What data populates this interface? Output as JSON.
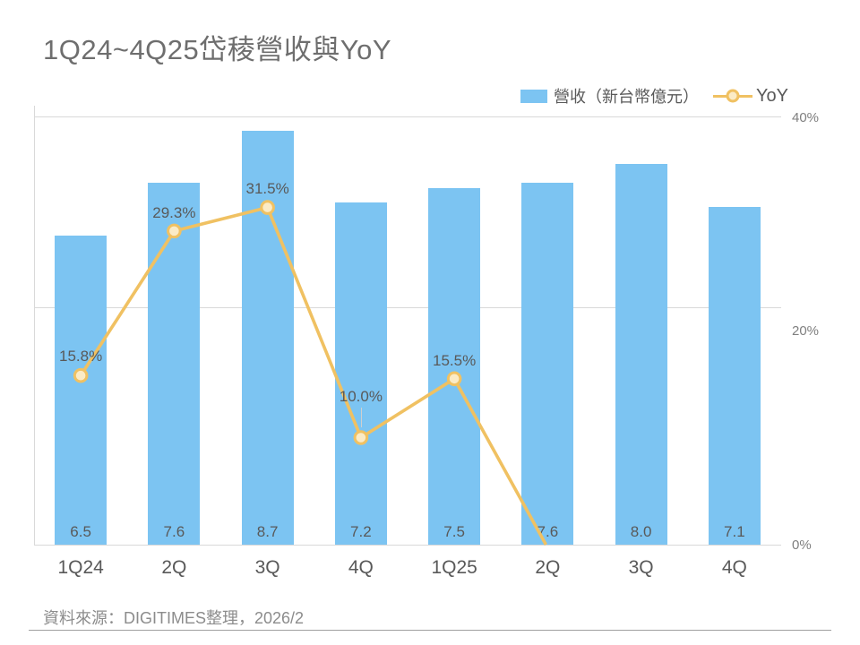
{
  "title": "1Q24~4Q25岱稜營收與YoY",
  "legend": {
    "revenue": "營收（新台幣億元）",
    "yoy": "YoY"
  },
  "chart_data": {
    "type": "combo-bar-line",
    "categories": [
      "1Q24",
      "2Q",
      "3Q",
      "4Q",
      "1Q25",
      "2Q",
      "3Q",
      "4Q"
    ],
    "series": [
      {
        "name": "營收（新台幣億元）",
        "type": "bar",
        "values": [
          6.5,
          7.6,
          8.7,
          7.2,
          7.5,
          7.6,
          8.0,
          7.1
        ],
        "value_labels": [
          "6.5",
          "7.6",
          "8.7",
          "7.2",
          "7.5",
          "7.6",
          "8.0",
          "7.1"
        ]
      },
      {
        "name": "YoY",
        "type": "line",
        "values": [
          15.8,
          29.3,
          31.5,
          10.0,
          15.5,
          -0.3,
          null,
          null
        ],
        "point_labels": [
          "15.8%",
          "29.3%",
          "31.5%",
          "10.0%",
          "15.5%",
          "",
          "",
          ""
        ]
      }
    ],
    "bar_axis": {
      "min": 0,
      "max": 9
    },
    "pct_axis": {
      "min": 0,
      "max": 40,
      "ticks": [
        "40%",
        "20%",
        "0%"
      ]
    },
    "grid": "horizontal",
    "legend_position": "top-right"
  },
  "footer": {
    "source": "資料來源：DIGITIMES整理，2026/2"
  },
  "colors": {
    "bar": "#7CC4F2",
    "line": "#F0C162",
    "marker_fill": "#FBEBC6",
    "grid": "#D9D9D9",
    "title_text": "#6E6E6E",
    "label_text": "#595959",
    "tick_text": "#7F7F7F",
    "footer_text": "#8C8C8C",
    "divider": "#A0A0A0"
  }
}
